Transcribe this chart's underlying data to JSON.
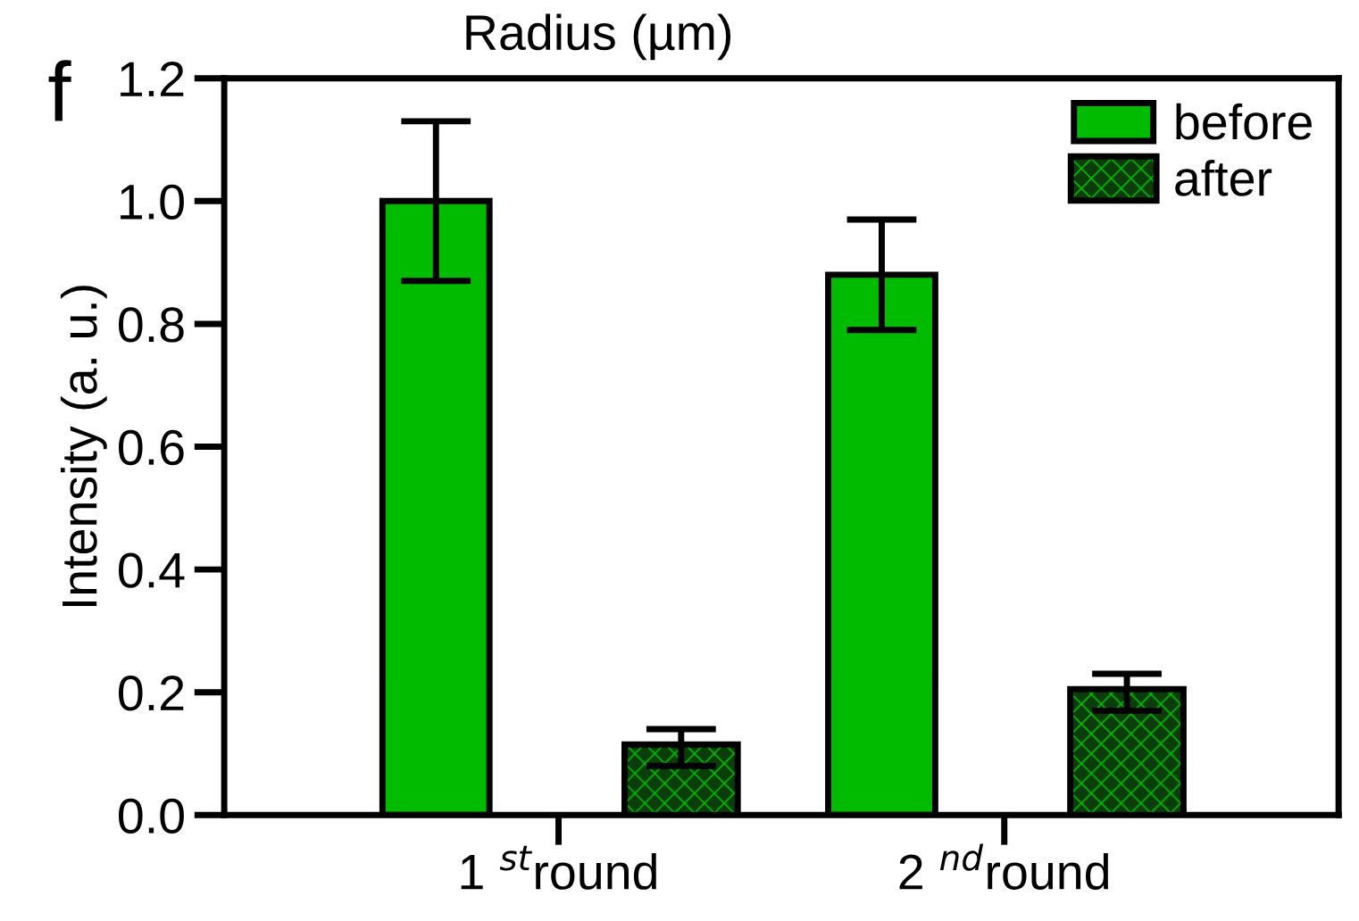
{
  "chart_data": {
    "type": "bar",
    "ylabel": "Intensity (a. u.)",
    "annotations": [
      "Radius (µm)",
      "f"
    ],
    "categories": [
      "1 $^{st}$round",
      "2 $^{nd}$round"
    ],
    "series": [
      {
        "name": "before",
        "color": "#00bb00",
        "values": [
          1.0,
          0.88
        ],
        "errors": [
          0.13,
          0.09
        ]
      },
      {
        "name": "after",
        "color": "#00bb00",
        "values": [
          0.11,
          0.2
        ],
        "errors": [
          0.03,
          0.03
        ]
      }
    ],
    "ylim": [
      0,
      1.2
    ],
    "yticks": [
      {
        "value": 0,
        "label": "0.0"
      },
      0.2,
      0.4,
      0.6,
      0.8,
      {
        "value": 1,
        "label": "1.0"
      },
      1.2
    ],
    "legend": "top right",
    "grid": false
  }
}
